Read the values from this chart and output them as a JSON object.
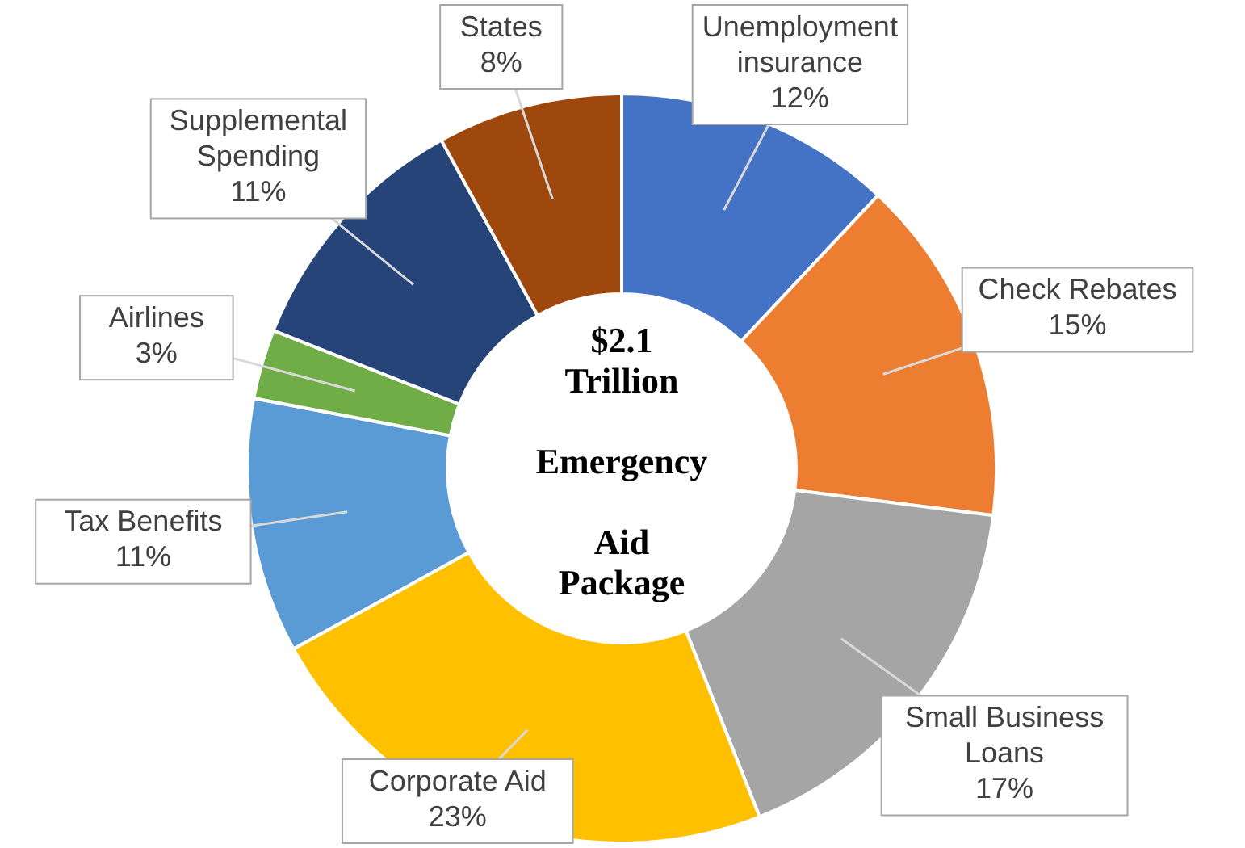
{
  "chart_data": {
    "type": "donut",
    "title": "$2.1 Trillion Emergency Aid Package",
    "categories": [
      "Unemployment insurance",
      "Check Rebates",
      "Small Business Loans",
      "Corporate Aid",
      "Tax Benefits",
      "Airlines",
      "Supplemental Spending",
      "States"
    ],
    "values": [
      12,
      15,
      17,
      23,
      11,
      3,
      11,
      8
    ],
    "colors": [
      "#4472c4",
      "#ed7d31",
      "#a5a5a5",
      "#ffc000",
      "#5b9bd5",
      "#70ad47",
      "#264478",
      "#9e480e"
    ],
    "value_labels": [
      "12%",
      "15%",
      "17%",
      "23%",
      "11%",
      "3%",
      "11%",
      "8%"
    ]
  }
}
